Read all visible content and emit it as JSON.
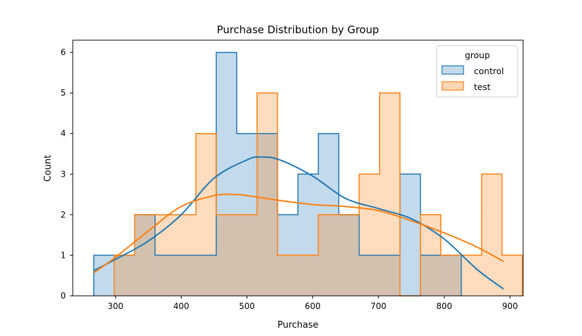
{
  "chart_data": {
    "type": "histogram",
    "title": "Purchase Distribution by Group",
    "xlabel": "Purchase",
    "ylabel": "Count",
    "xlim": [
      235,
      920
    ],
    "ylim": [
      0,
      6.3
    ],
    "x_ticks": [
      300,
      400,
      500,
      600,
      700,
      800,
      900
    ],
    "y_ticks": [
      0,
      1,
      2,
      3,
      4,
      5,
      6
    ],
    "legend": {
      "title": "group",
      "placement": "top-right"
    },
    "bins": {
      "control": {
        "start": 267,
        "width": 31.05
      },
      "test": {
        "start": 298,
        "width": 31.05
      }
    },
    "series": [
      {
        "name": "control",
        "color": "#1f77b4",
        "fill": "#c4daea",
        "counts": [
          1,
          1,
          2,
          1,
          1,
          1,
          6,
          4,
          4,
          2,
          3,
          4,
          2,
          1,
          1,
          3,
          1,
          1
        ],
        "kde_x": [
          267,
          300,
          350,
          400,
          450,
          500,
          520,
          550,
          600,
          650,
          700,
          750,
          800,
          850,
          890
        ],
        "kde_y": [
          0.62,
          0.9,
          1.35,
          2.0,
          2.9,
          3.35,
          3.42,
          3.35,
          2.95,
          2.4,
          2.15,
          1.9,
          1.4,
          0.65,
          0.17
        ]
      },
      {
        "name": "test",
        "color": "#ff7f0e",
        "fill": "#fdd6b4",
        "counts": [
          1,
          2,
          2,
          2,
          4,
          2,
          2,
          5,
          1,
          1,
          2,
          2,
          3,
          5,
          0,
          2,
          1,
          1,
          3,
          1
        ],
        "kde_x": [
          267,
          300,
          350,
          400,
          450,
          480,
          500,
          550,
          600,
          650,
          700,
          750,
          800,
          850,
          890
        ],
        "kde_y": [
          0.57,
          0.95,
          1.6,
          2.2,
          2.47,
          2.5,
          2.47,
          2.35,
          2.25,
          2.2,
          2.1,
          1.85,
          1.55,
          1.2,
          0.85
        ]
      }
    ]
  }
}
